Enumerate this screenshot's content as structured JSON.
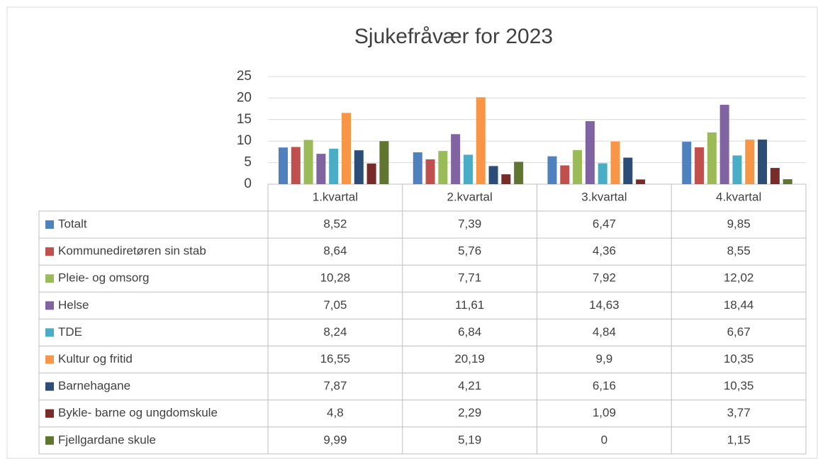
{
  "chart_data": {
    "type": "bar",
    "title": "Sjukefråvær for 2023",
    "categories": [
      "1.kvartal",
      "2.kvartal",
      "3.kvartal",
      "4.kvartal"
    ],
    "ylim": [
      0,
      25
    ],
    "yticks": [
      0,
      5,
      10,
      15,
      20,
      25
    ],
    "grid": true,
    "series": [
      {
        "name": "Totalt",
        "color": "#4f81bd",
        "values": [
          8.52,
          7.39,
          6.47,
          9.85
        ],
        "value_labels": [
          "8,52",
          "7,39",
          "6,47",
          "9,85"
        ]
      },
      {
        "name": "Kommunediretøren sin stab",
        "color": "#c0504d",
        "values": [
          8.64,
          5.76,
          4.36,
          8.55
        ],
        "value_labels": [
          "8,64",
          "5,76",
          "4,36",
          "8,55"
        ]
      },
      {
        "name": "Pleie- og omsorg",
        "color": "#9bbb59",
        "values": [
          10.28,
          7.71,
          7.92,
          12.02
        ],
        "value_labels": [
          "10,28",
          "7,71",
          "7,92",
          "12,02"
        ]
      },
      {
        "name": "Helse",
        "color": "#8064a2",
        "values": [
          7.05,
          11.61,
          14.63,
          18.44
        ],
        "value_labels": [
          "7,05",
          "11,61",
          "14,63",
          "18,44"
        ]
      },
      {
        "name": "TDE",
        "color": "#4bacc6",
        "values": [
          8.24,
          6.84,
          4.84,
          6.67
        ],
        "value_labels": [
          "8,24",
          "6,84",
          "4,84",
          "6,67"
        ]
      },
      {
        "name": "Kultur og fritid",
        "color": "#f79646",
        "values": [
          16.55,
          20.19,
          9.9,
          10.35
        ],
        "value_labels": [
          "16,55",
          "20,19",
          "9,9",
          "10,35"
        ]
      },
      {
        "name": "Barnehagane",
        "color": "#2c4d75",
        "values": [
          7.87,
          4.21,
          6.16,
          10.35
        ],
        "value_labels": [
          "7,87",
          "4,21",
          "6,16",
          "10,35"
        ]
      },
      {
        "name": "Bykle- barne og ungdomskule",
        "color": "#772c2a",
        "values": [
          4.8,
          2.29,
          1.09,
          3.77
        ],
        "value_labels": [
          "4,8",
          "2,29",
          "1,09",
          "3,77"
        ]
      },
      {
        "name": "Fjellgardane skule",
        "color": "#5f7530",
        "values": [
          9.99,
          5.19,
          0,
          1.15
        ],
        "value_labels": [
          "9,99",
          "5,19",
          "0",
          "1,15"
        ]
      }
    ]
  }
}
